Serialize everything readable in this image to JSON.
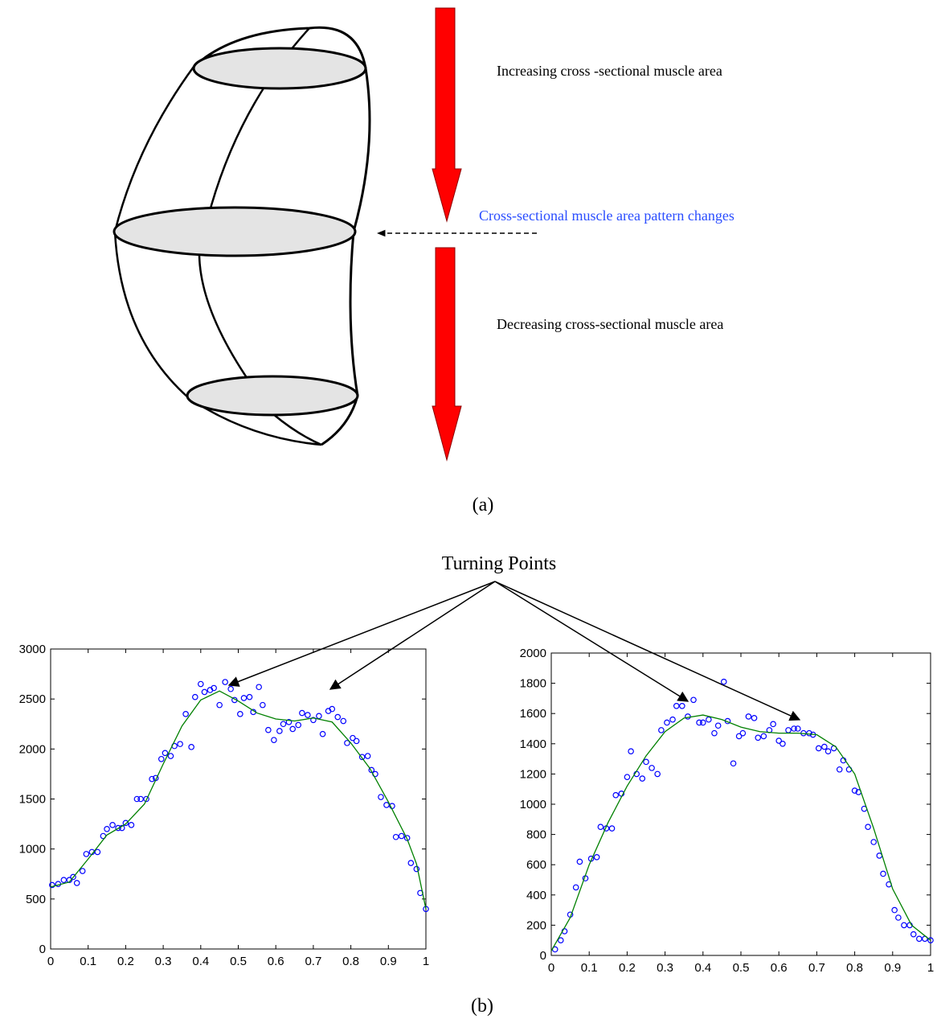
{
  "diagram": {
    "label_increasing": "Increasing cross -sectional muscle area",
    "label_change": "Cross-sectional muscle area pattern changes",
    "label_decreasing": "Decreasing cross-sectional muscle area",
    "caption": "(a)"
  },
  "annotation": "Turning Points",
  "caption": "(b)",
  "chart_data": [
    {
      "type": "scatter",
      "xlim": [
        0,
        1
      ],
      "ylim": [
        0,
        3000
      ],
      "xticks": [
        0,
        0.1,
        0.2,
        0.3,
        0.4,
        0.5,
        0.6,
        0.7,
        0.8,
        0.9,
        1
      ],
      "yticks": [
        0,
        500,
        1000,
        1500,
        2000,
        2500,
        3000
      ],
      "series": [
        {
          "type": "scatter",
          "color": "#0000ff",
          "x": [
            0.004,
            0.02,
            0.035,
            0.05,
            0.06,
            0.07,
            0.085,
            0.095,
            0.11,
            0.125,
            0.14,
            0.15,
            0.165,
            0.18,
            0.19,
            0.2,
            0.215,
            0.23,
            0.24,
            0.255,
            0.27,
            0.28,
            0.295,
            0.305,
            0.32,
            0.33,
            0.345,
            0.36,
            0.375,
            0.385,
            0.4,
            0.41,
            0.425,
            0.435,
            0.45,
            0.465,
            0.48,
            0.49,
            0.505,
            0.515,
            0.53,
            0.54,
            0.555,
            0.565,
            0.58,
            0.595,
            0.61,
            0.62,
            0.635,
            0.645,
            0.66,
            0.67,
            0.685,
            0.7,
            0.715,
            0.725,
            0.74,
            0.75,
            0.765,
            0.78,
            0.79,
            0.805,
            0.815,
            0.83,
            0.845,
            0.855,
            0.865,
            0.88,
            0.895,
            0.91,
            0.92,
            0.935,
            0.95,
            0.96,
            0.975,
            0.985,
            1
          ],
          "values": [
            640,
            650,
            690,
            690,
            720,
            660,
            780,
            950,
            970,
            970,
            1130,
            1200,
            1240,
            1210,
            1210,
            1260,
            1240,
            1500,
            1500,
            1500,
            1700,
            1710,
            1900,
            1960,
            1930,
            2030,
            2050,
            2350,
            2020,
            2520,
            2650,
            2570,
            2590,
            2610,
            2440,
            2670,
            2600,
            2490,
            2350,
            2510,
            2520,
            2370,
            2620,
            2440,
            2190,
            2090,
            2180,
            2250,
            2270,
            2200,
            2240,
            2360,
            2340,
            2290,
            2330,
            2150,
            2380,
            2400,
            2320,
            2280,
            2060,
            2110,
            2080,
            1920,
            1930,
            1790,
            1750,
            1520,
            1440,
            1430,
            1120,
            1130,
            1110,
            860,
            800,
            560,
            400
          ]
        },
        {
          "type": "line",
          "color": "#008000",
          "x": [
            0,
            0.05,
            0.1,
            0.15,
            0.2,
            0.25,
            0.3,
            0.35,
            0.4,
            0.45,
            0.5,
            0.55,
            0.6,
            0.65,
            0.7,
            0.75,
            0.8,
            0.85,
            0.9,
            0.95,
            0.975,
            1
          ],
          "values": [
            620,
            670,
            900,
            1140,
            1250,
            1450,
            1850,
            2230,
            2490,
            2580,
            2480,
            2360,
            2300,
            2280,
            2310,
            2270,
            2060,
            1810,
            1470,
            1100,
            850,
            400
          ]
        }
      ]
    },
    {
      "type": "scatter",
      "xlim": [
        0,
        1
      ],
      "ylim": [
        0,
        2000
      ],
      "xticks": [
        0,
        0.1,
        0.2,
        0.3,
        0.4,
        0.5,
        0.6,
        0.7,
        0.8,
        0.9,
        1
      ],
      "yticks": [
        0,
        200,
        400,
        600,
        800,
        1000,
        1200,
        1400,
        1600,
        1800,
        2000
      ],
      "series": [
        {
          "type": "scatter",
          "color": "#0000ff",
          "x": [
            0.01,
            0.025,
            0.035,
            0.05,
            0.065,
            0.075,
            0.09,
            0.105,
            0.12,
            0.13,
            0.145,
            0.16,
            0.17,
            0.185,
            0.2,
            0.21,
            0.225,
            0.24,
            0.25,
            0.265,
            0.28,
            0.29,
            0.305,
            0.32,
            0.33,
            0.345,
            0.36,
            0.375,
            0.39,
            0.4,
            0.415,
            0.43,
            0.44,
            0.455,
            0.465,
            0.48,
            0.495,
            0.505,
            0.52,
            0.535,
            0.545,
            0.56,
            0.575,
            0.585,
            0.6,
            0.61,
            0.625,
            0.64,
            0.65,
            0.665,
            0.68,
            0.69,
            0.705,
            0.72,
            0.73,
            0.745,
            0.76,
            0.77,
            0.785,
            0.8,
            0.81,
            0.825,
            0.835,
            0.85,
            0.865,
            0.875,
            0.89,
            0.905,
            0.915,
            0.93,
            0.945,
            0.955,
            0.97,
            0.985,
            1
          ],
          "values": [
            40,
            100,
            160,
            270,
            450,
            620,
            510,
            640,
            650,
            850,
            840,
            840,
            1060,
            1070,
            1180,
            1350,
            1200,
            1170,
            1280,
            1240,
            1200,
            1490,
            1540,
            1560,
            1650,
            1650,
            1580,
            1690,
            1540,
            1540,
            1560,
            1470,
            1520,
            1810,
            1550,
            1270,
            1450,
            1470,
            1580,
            1570,
            1440,
            1450,
            1490,
            1530,
            1420,
            1400,
            1490,
            1500,
            1500,
            1470,
            1470,
            1460,
            1370,
            1380,
            1350,
            1370,
            1230,
            1290,
            1230,
            1090,
            1080,
            970,
            850,
            750,
            660,
            540,
            470,
            300,
            250,
            200,
            200,
            140,
            110,
            110,
            100
          ]
        },
        {
          "type": "line",
          "color": "#008000",
          "x": [
            0,
            0.05,
            0.1,
            0.15,
            0.2,
            0.25,
            0.3,
            0.35,
            0.4,
            0.45,
            0.5,
            0.55,
            0.6,
            0.65,
            0.7,
            0.75,
            0.8,
            0.85,
            0.9,
            0.95,
            1
          ],
          "values": [
            30,
            250,
            600,
            880,
            1120,
            1320,
            1480,
            1570,
            1590,
            1560,
            1510,
            1480,
            1470,
            1470,
            1460,
            1380,
            1200,
            840,
            440,
            200,
            100
          ]
        }
      ]
    }
  ]
}
